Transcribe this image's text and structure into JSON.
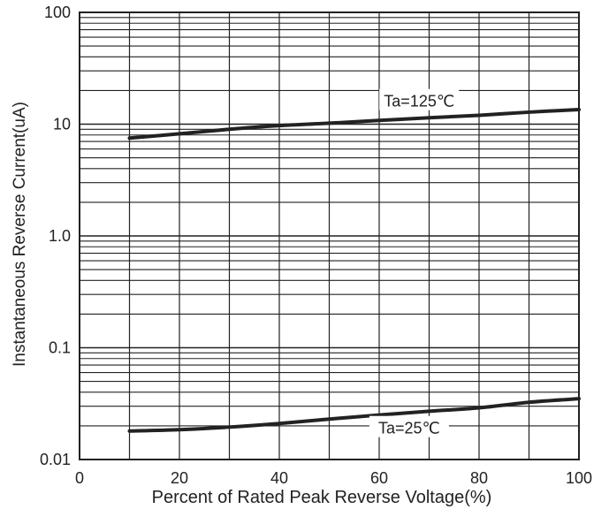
{
  "chart_data": {
    "type": "line",
    "title": "",
    "xlabel": "Percent of Rated Peak Reverse Voltage(%)",
    "ylabel": "Instantaneous Reverse Current(uA)",
    "xlim": [
      0,
      100
    ],
    "ylim": [
      0.01,
      100
    ],
    "yscale": "log",
    "grid": true,
    "x_ticks": [
      0,
      20,
      40,
      60,
      80,
      100
    ],
    "x_tick_labels": [
      "0",
      "20",
      "40",
      "60",
      "80",
      "100"
    ],
    "y_ticks": [
      0.01,
      0.1,
      1,
      10,
      100
    ],
    "y_tick_labels": [
      "0.01",
      "0.1",
      "1.0",
      "10",
      "100"
    ],
    "series": [
      {
        "name": "",
        "x": [
          10,
          20,
          30,
          40,
          50,
          60,
          70,
          80,
          90,
          100
        ],
        "y": [
          7.5,
          8.2,
          9.0,
          9.7,
          10.2,
          10.8,
          11.4,
          12.0,
          12.8,
          13.5
        ]
      },
      {
        "name": "",
        "x": [
          10,
          20,
          30,
          40,
          50,
          60,
          70,
          80,
          90,
          100
        ],
        "y": [
          0.018,
          0.0185,
          0.0195,
          0.021,
          0.023,
          0.025,
          0.027,
          0.029,
          0.0325,
          0.035
        ]
      }
    ],
    "annotations": [
      {
        "text": "Ta=125℃",
        "x": 68,
        "y": 16
      },
      {
        "text": "Ta=25℃",
        "x": 66,
        "y": 0.019
      }
    ],
    "colors": {
      "line": "#222222",
      "grid": "#222222",
      "background": "#ffffff"
    }
  }
}
